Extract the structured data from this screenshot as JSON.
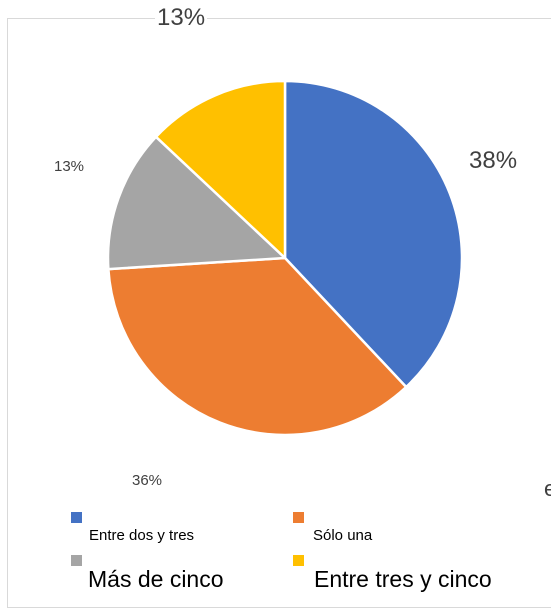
{
  "chart_data": {
    "type": "pie",
    "slices": [
      {
        "name": "Entre dos y tres",
        "value": 38,
        "label": "38%",
        "color": "#4472C4"
      },
      {
        "name": "Sólo una",
        "value": 36,
        "label": "36%",
        "color": "#ED7D31"
      },
      {
        "name": "Más de cinco",
        "value": 13,
        "label": "13%",
        "color": "#A5A5A5"
      },
      {
        "name": "Entre tres y cinco",
        "value": 13,
        "label": "13%",
        "color": "#FFC000"
      }
    ],
    "legend": [
      "Entre dos y tres",
      "Sólo una",
      "Más de cinco",
      "Entre tres y cinco"
    ],
    "legend_placement": "bottom"
  },
  "stray_text": "e"
}
